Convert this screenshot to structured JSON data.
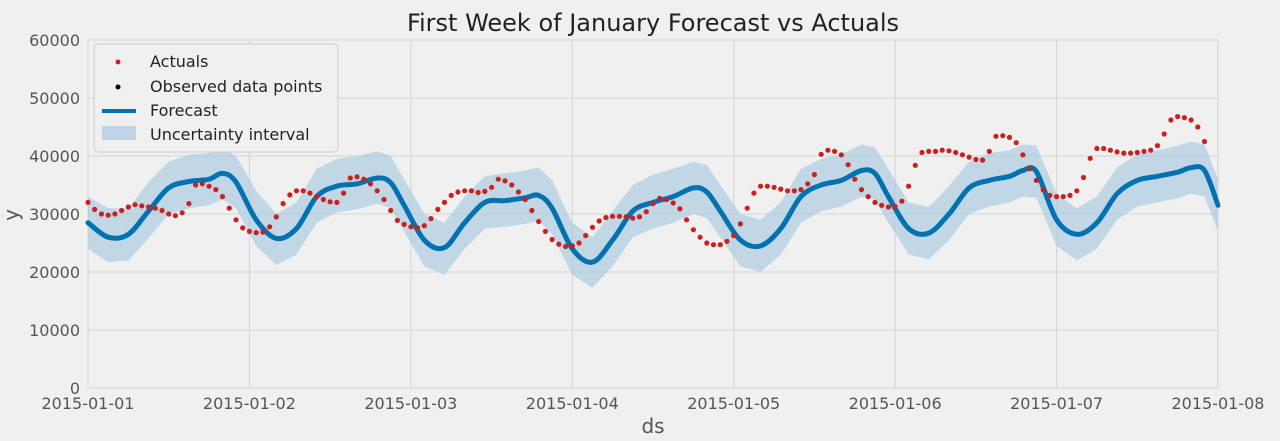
{
  "chart_data": {
    "type": "line",
    "title": "First Week of January Forecast vs Actuals",
    "xlabel": "ds",
    "ylabel": "y",
    "ylim": [
      0,
      60000
    ],
    "xlim": [
      "2015-01-01",
      "2015-01-08"
    ],
    "grid": true,
    "legend_position": "top-left",
    "x_ticks": [
      "2015-01-01",
      "2015-01-02",
      "2015-01-03",
      "2015-01-04",
      "2015-01-05",
      "2015-01-06",
      "2015-01-07",
      "2015-01-08"
    ],
    "y_ticks": [
      "0",
      "10000",
      "20000",
      "30000",
      "40000",
      "50000",
      "60000"
    ],
    "colors": {
      "actuals": "#cc1f1f",
      "observed": "#000000",
      "forecast": "#0072b2",
      "band": "#a9c9e0",
      "background": "#f0f0f0",
      "grid": "#d4d4d4"
    },
    "legend": [
      "Actuals",
      "Observed data points",
      "Forecast",
      "Uncertainty interval"
    ],
    "series": [
      {
        "name": "Actuals",
        "kind": "points",
        "start": "2015-01-01 00:00",
        "step_hours": 1,
        "values": [
          32000,
          30800,
          30000,
          29800,
          30000,
          30600,
          31200,
          31600,
          31400,
          31200,
          31000,
          30600,
          30000,
          29700,
          30200,
          31800,
          35000,
          35200,
          34800,
          34200,
          33000,
          31000,
          29000,
          27600,
          27000,
          26800,
          26900,
          27800,
          29500,
          31800,
          33300,
          34000,
          34000,
          33600,
          33000,
          32500,
          32100,
          32000,
          33600,
          36200,
          36400,
          36000,
          35200,
          34000,
          32500,
          30600,
          28900,
          28200,
          27800,
          27600,
          28000,
          29200,
          30800,
          32000,
          33200,
          33800,
          34000,
          34000,
          33700,
          33900,
          34600,
          36000,
          35700,
          35000,
          33800,
          32500,
          30600,
          28700,
          27000,
          25600,
          24800,
          24400,
          24500,
          25000,
          26300,
          27700,
          28800,
          29400,
          29600,
          29600,
          29500,
          29300,
          29500,
          30400,
          31800,
          32700,
          32500,
          31900,
          30900,
          29000,
          27300,
          26000,
          25000,
          24700,
          24700,
          25300,
          26300,
          28300,
          31000,
          33600,
          34800,
          34800,
          34600,
          34300,
          34000,
          34000,
          34200,
          35200,
          36800,
          40300,
          41000,
          40800,
          40200,
          38500,
          36000,
          34200,
          33000,
          32000,
          31500,
          31200,
          31300,
          32200,
          34800,
          38400,
          40600,
          40800,
          40800,
          41000,
          40900,
          40600,
          40200,
          39800,
          39400,
          39300,
          40800,
          43400,
          43500,
          43200,
          42300,
          40200,
          37800,
          35800,
          34200,
          33200,
          33000,
          33000,
          33200,
          34000,
          36300,
          39600,
          41300,
          41300,
          41000,
          40700,
          40500,
          40500,
          40600,
          40800,
          41000,
          41800,
          43800,
          46200,
          46800,
          46600,
          46200,
          45000,
          42500
        ]
      },
      {
        "name": "Forecast",
        "kind": "line",
        "x": [
          "2015-01-01 00:00",
          "2015-01-01 03:00",
          "2015-01-01 06:00",
          "2015-01-01 09:00",
          "2015-01-01 12:00",
          "2015-01-01 15:00",
          "2015-01-01 18:00",
          "2015-01-01 20:00",
          "2015-01-01 22:00",
          "2015-01-02 01:00",
          "2015-01-02 04:00",
          "2015-01-02 07:00",
          "2015-01-02 10:00",
          "2015-01-02 13:00",
          "2015-01-02 16:00",
          "2015-01-02 19:00",
          "2015-01-02 21:00",
          "2015-01-02 23:00",
          "2015-01-03 02:00",
          "2015-01-03 05:00",
          "2015-01-03 08:00",
          "2015-01-03 11:00",
          "2015-01-03 14:00",
          "2015-01-03 17:00",
          "2015-01-03 19:00",
          "2015-01-03 21:00",
          "2015-01-04 00:00",
          "2015-01-04 03:00",
          "2015-01-04 06:00",
          "2015-01-04 09:00",
          "2015-01-04 12:00",
          "2015-01-04 15:00",
          "2015-01-04 18:00",
          "2015-01-04 20:00",
          "2015-01-04 22:00",
          "2015-01-05 01:00",
          "2015-01-05 04:00",
          "2015-01-05 07:00",
          "2015-01-05 10:00",
          "2015-01-05 13:00",
          "2015-01-05 16:00",
          "2015-01-05 19:00",
          "2015-01-05 21:00",
          "2015-01-05 23:00",
          "2015-01-06 02:00",
          "2015-01-06 05:00",
          "2015-01-06 08:00",
          "2015-01-06 11:00",
          "2015-01-06 14:00",
          "2015-01-06 17:00",
          "2015-01-06 19:00",
          "2015-01-06 21:00",
          "2015-01-07 00:00",
          "2015-01-07 03:00",
          "2015-01-07 06:00",
          "2015-01-07 09:00",
          "2015-01-07 12:00",
          "2015-01-07 15:00",
          "2015-01-07 18:00",
          "2015-01-07 20:00",
          "2015-01-07 22:00",
          "2015-01-08 00:00"
        ],
        "values": [
          28500,
          26000,
          26500,
          30500,
          34500,
          35600,
          36000,
          37000,
          35500,
          29000,
          25800,
          27500,
          33000,
          34800,
          35200,
          36200,
          35400,
          31500,
          25500,
          24200,
          28500,
          32000,
          32300,
          32800,
          33200,
          31000,
          24000,
          21700,
          25500,
          30500,
          32000,
          33000,
          34500,
          33800,
          30500,
          25500,
          24500,
          27500,
          33000,
          35000,
          35800,
          37500,
          37000,
          33000,
          27500,
          26700,
          30000,
          34500,
          35800,
          36500,
          37500,
          37300,
          29000,
          26500,
          28500,
          33500,
          35800,
          36500,
          37200,
          38000,
          37500,
          31500
        ]
      },
      {
        "name": "Uncertainty interval",
        "kind": "band",
        "upper": [
          33000,
          31000,
          31000,
          35500,
          39000,
          40200,
          40500,
          41300,
          40000,
          34000,
          30000,
          32000,
          37800,
          39500,
          40000,
          40800,
          40000,
          36000,
          30000,
          28500,
          33000,
          36500,
          37000,
          37500,
          38000,
          35800,
          28500,
          26000,
          30500,
          35000,
          36800,
          37800,
          39000,
          38500,
          35000,
          30000,
          29000,
          32000,
          37800,
          39500,
          40300,
          42000,
          41500,
          37800,
          32000,
          31200,
          34800,
          39000,
          40500,
          41000,
          42000,
          41800,
          33500,
          31000,
          33000,
          38000,
          40300,
          41000,
          41800,
          42500,
          42000,
          36000
        ],
        "lower": [
          24000,
          21700,
          22000,
          25800,
          30000,
          31000,
          31500,
          32500,
          31000,
          24500,
          21200,
          23000,
          28500,
          30300,
          30800,
          31800,
          31000,
          27000,
          21000,
          19500,
          24000,
          27500,
          27800,
          28300,
          28800,
          26500,
          19500,
          17300,
          21000,
          26000,
          27500,
          28500,
          30000,
          29300,
          26000,
          21000,
          20000,
          23000,
          28500,
          30500,
          31300,
          33000,
          32500,
          28500,
          23000,
          22200,
          25500,
          30000,
          31300,
          32000,
          33000,
          32800,
          24500,
          22000,
          24000,
          29000,
          31300,
          32000,
          32700,
          33500,
          33000,
          27000
        ]
      }
    ]
  }
}
